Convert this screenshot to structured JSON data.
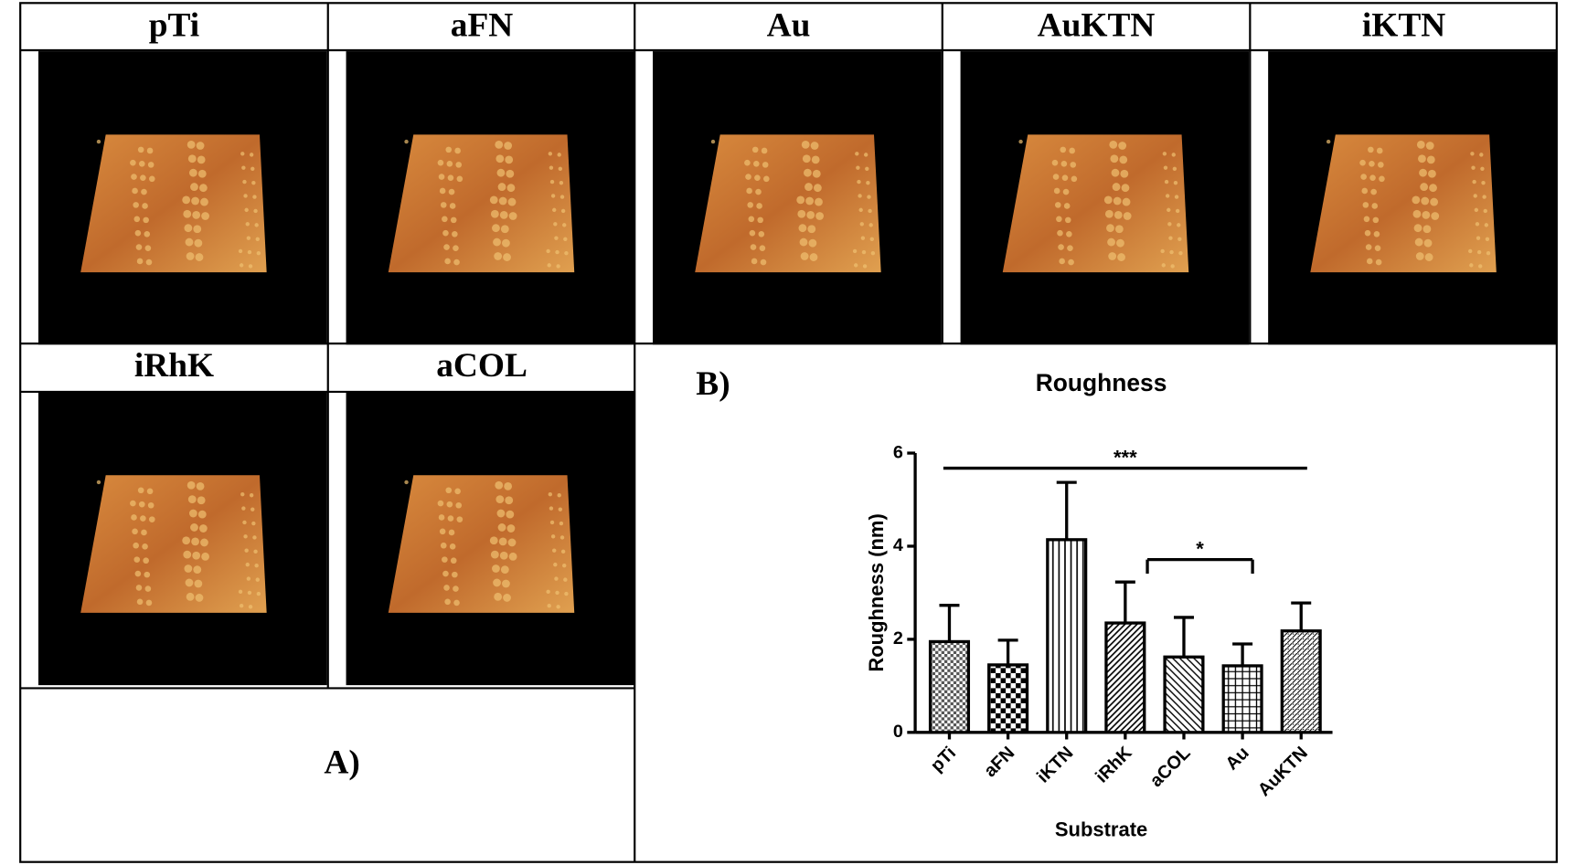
{
  "panel_a": {
    "images": [
      "pTi",
      "aFN",
      "Au",
      "AuKTN",
      "iKTN",
      "iRhK",
      "aCOL"
    ],
    "label": "A)"
  },
  "panel_b_label": "B)",
  "chart_data": {
    "type": "bar",
    "title": "Roughness",
    "x_label": "Substrate",
    "y_label": "Roughness (nm)",
    "categories": [
      "pTi",
      "aFN",
      "iKTN",
      "iRhK",
      "aCOL",
      "Au",
      "AuKTN"
    ],
    "values": [
      1.95,
      1.45,
      4.14,
      2.35,
      1.62,
      1.43,
      2.18
    ],
    "errors": [
      0.78,
      0.53,
      1.23,
      0.88,
      0.85,
      0.47,
      0.6
    ],
    "color": "#000000",
    "ylim": [
      0,
      6
    ],
    "yticks": [
      0,
      2,
      4,
      6
    ],
    "annotations": [
      "***",
      "*"
    ]
  }
}
